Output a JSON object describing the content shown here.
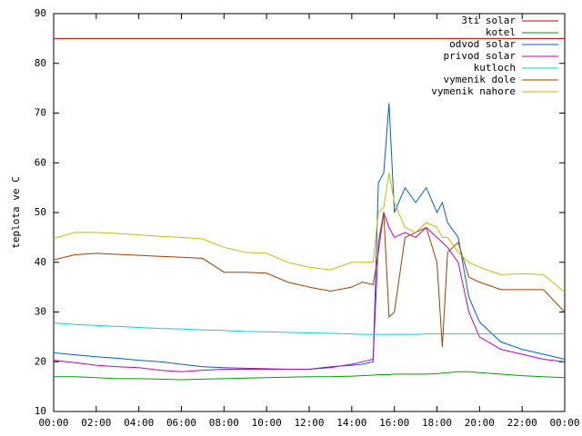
{
  "chart_data": {
    "type": "line",
    "y_label": "teplota ve C",
    "ylim": [
      10,
      90
    ],
    "yticks": [
      10,
      20,
      30,
      40,
      50,
      60,
      70,
      80,
      90
    ],
    "xlim": [
      0,
      24
    ],
    "xticks": [
      {
        "value": 0,
        "label": "00:00"
      },
      {
        "value": 2,
        "label": "02:00"
      },
      {
        "value": 4,
        "label": "04:00"
      },
      {
        "value": 6,
        "label": "06:00"
      },
      {
        "value": 8,
        "label": "08:00"
      },
      {
        "value": 10,
        "label": "10:00"
      },
      {
        "value": 12,
        "label": "12:00"
      },
      {
        "value": 14,
        "label": "14:00"
      },
      {
        "value": 16,
        "label": "16:00"
      },
      {
        "value": 18,
        "label": "18:00"
      },
      {
        "value": 20,
        "label": "20:00"
      },
      {
        "value": 22,
        "label": "22:00"
      },
      {
        "value": 24,
        "label": "00:00"
      }
    ],
    "legend": "top-right",
    "x": [
      0,
      1,
      2,
      3,
      4,
      5,
      6,
      7,
      8,
      9,
      10,
      11,
      12,
      13,
      14,
      14.5,
      15,
      15.25,
      15.5,
      15.75,
      16,
      16.5,
      17,
      17.5,
      18,
      18.25,
      18.5,
      19,
      19.5,
      20,
      21,
      22,
      23,
      24
    ],
    "series": [
      {
        "name": "3ti solar",
        "color": "#cc0000",
        "values": [
          85,
          85,
          85,
          85,
          85,
          85,
          85,
          85,
          85,
          85,
          85,
          85,
          85,
          85,
          85,
          85,
          85,
          85,
          85,
          85,
          85,
          85,
          85,
          85,
          85,
          85,
          85,
          85,
          85,
          85,
          85,
          85,
          85,
          85
        ]
      },
      {
        "name": "kotel",
        "color": "#00a000",
        "values": [
          17,
          17,
          16.8,
          16.6,
          16.6,
          16.5,
          16.4,
          16.5,
          16.6,
          16.7,
          16.8,
          16.9,
          17,
          17,
          17.1,
          17.2,
          17.3,
          17.4,
          17.4,
          17.4,
          17.5,
          17.5,
          17.5,
          17.5,
          17.6,
          17.7,
          17.8,
          18,
          18,
          17.8,
          17.5,
          17.2,
          17,
          16.8
        ]
      },
      {
        "name": "odvod solar",
        "color": "#0060d0",
        "values": [
          21.8,
          21.4,
          21,
          20.7,
          20.3,
          20,
          19.5,
          19,
          18.8,
          18.7,
          18.6,
          18.5,
          18.5,
          19,
          19.3,
          19.5,
          20,
          56,
          58,
          72,
          50,
          55,
          52,
          55,
          50,
          52,
          48,
          45,
          33,
          28,
          24,
          22.5,
          21.5,
          20.5
        ]
      },
      {
        "name": "privod solar",
        "color": "#c000c0",
        "values": [
          20.3,
          19.8,
          19.3,
          19,
          18.8,
          18.3,
          18,
          18.3,
          18.5,
          18.5,
          18.5,
          18.5,
          18.5,
          18.8,
          19.5,
          20,
          20.5,
          44,
          50,
          47,
          45,
          46,
          45,
          47,
          45,
          44,
          43,
          40,
          30,
          25,
          22.5,
          21.5,
          20.5,
          20
        ]
      },
      {
        "name": "kutloch",
        "color": "#00d8d8",
        "values": [
          27.8,
          27.5,
          27.3,
          27.1,
          26.9,
          26.7,
          26.6,
          26.4,
          26.3,
          26.1,
          26,
          25.9,
          25.8,
          25.7,
          25.6,
          25.5,
          25.5,
          25.5,
          25.5,
          25.5,
          25.5,
          25.5,
          25.5,
          25.6,
          25.6,
          25.6,
          25.6,
          25.6,
          25.6,
          25.6,
          25.6,
          25.6,
          25.6,
          25.6
        ]
      },
      {
        "name": "vymenik dole",
        "color": "#a04000",
        "values": [
          40.5,
          41.5,
          41.8,
          41.6,
          41.4,
          41.2,
          41,
          40.8,
          38,
          38,
          37.8,
          36,
          35,
          34.2,
          35,
          36,
          35.5,
          42,
          50,
          29,
          30,
          45,
          46,
          47,
          40,
          23,
          42,
          44,
          37,
          36,
          34.5,
          34.5,
          34.5,
          30
        ]
      },
      {
        "name": "vymenik nahore",
        "color": "#c0c000",
        "values": [
          44.8,
          46,
          46,
          45.8,
          45.5,
          45.2,
          45,
          44.7,
          43,
          42,
          41.8,
          40,
          39,
          38.5,
          40,
          40,
          40,
          50,
          51,
          58,
          52,
          47,
          46,
          48,
          47,
          45,
          45,
          42,
          40,
          39,
          37.5,
          37.7,
          37.5,
          34
        ]
      }
    ]
  }
}
